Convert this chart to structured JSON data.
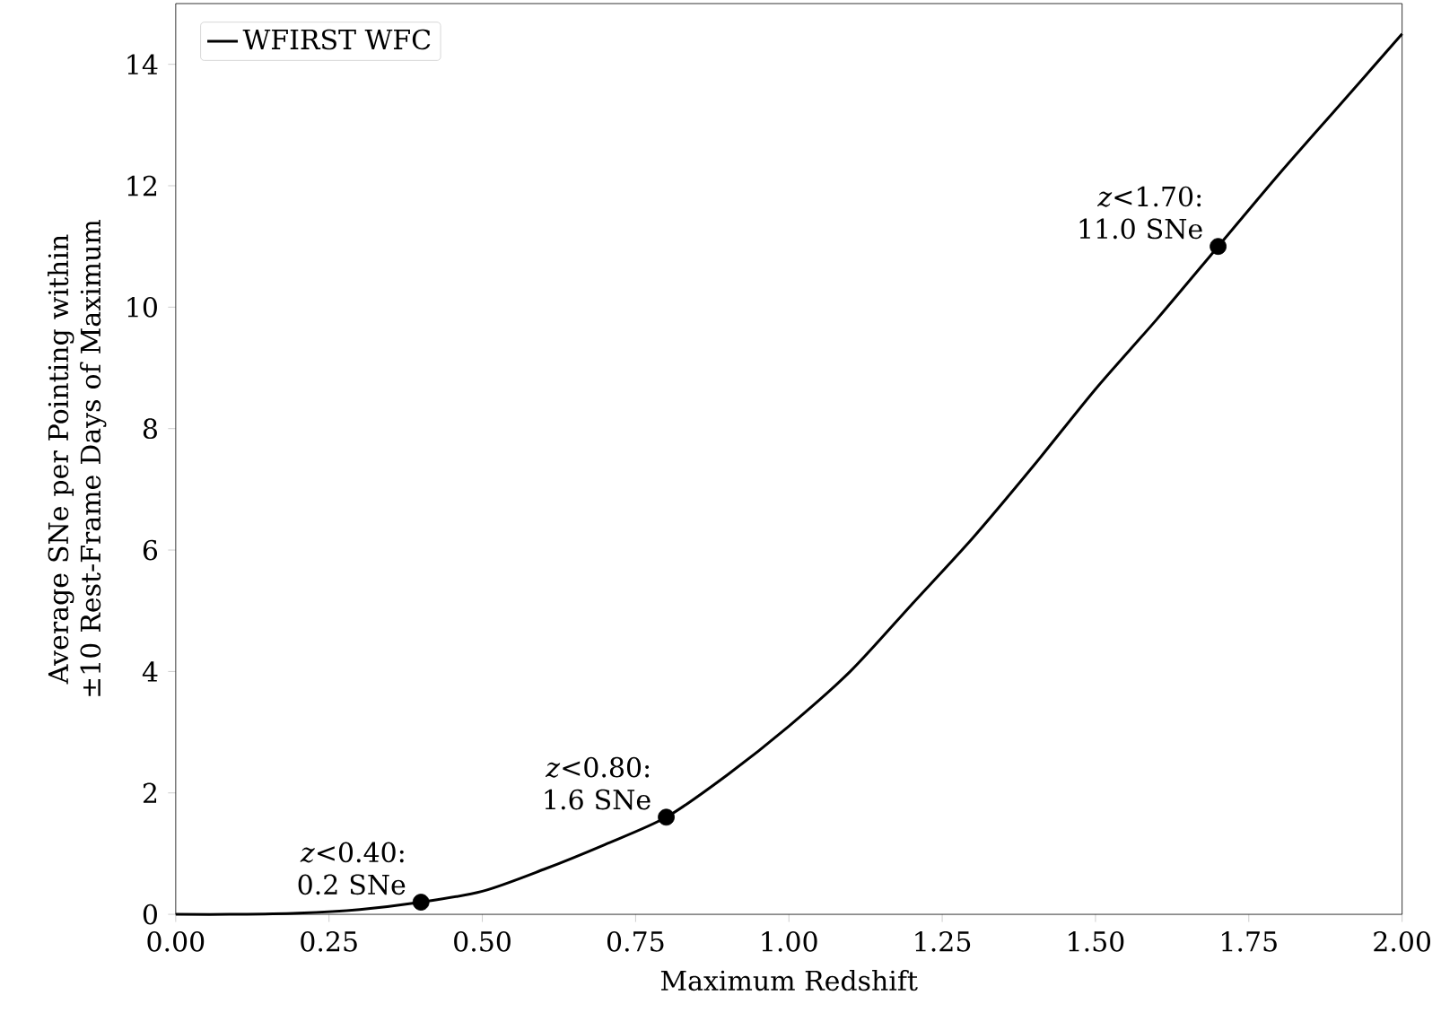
{
  "chart_data": {
    "type": "line",
    "xlabel": "Maximum Redshift",
    "ylabel": "Average SNe per Pointing within ±10 Rest-Frame Days of Maximum",
    "xlim": [
      0,
      2
    ],
    "ylim": [
      0,
      15
    ],
    "xticks": [
      {
        "value": 0,
        "label": "0.00"
      },
      {
        "value": 0.25,
        "label": "0.25"
      },
      {
        "value": 0.5,
        "label": "0.50"
      },
      {
        "value": 0.75,
        "label": "0.75"
      },
      {
        "value": 1,
        "label": "1.00"
      },
      {
        "value": 1.25,
        "label": "1.25"
      },
      {
        "value": 1.5,
        "label": "1.50"
      },
      {
        "value": 1.75,
        "label": "1.75"
      },
      {
        "value": 2,
        "label": "2.00"
      }
    ],
    "yticks": [
      0,
      2,
      4,
      6,
      8,
      10,
      12,
      14
    ],
    "legend": "top left",
    "grid": false,
    "series": [
      {
        "name": "WFIRST WFC",
        "color": "#000000",
        "marker": "none",
        "x": [
          0,
          0.1,
          0.2,
          0.3,
          0.4,
          0.5,
          0.6,
          0.7,
          0.8,
          0.9,
          1.0,
          1.1,
          1.2,
          1.3,
          1.4,
          1.5,
          1.6,
          1.7,
          1.8,
          1.9,
          2.0
        ],
        "values": [
          0,
          0.0,
          0.02,
          0.08,
          0.2,
          0.38,
          0.74,
          1.15,
          1.6,
          2.3,
          3.1,
          4.0,
          5.1,
          6.2,
          7.4,
          8.65,
          9.8,
          11.0,
          12.2,
          13.35,
          14.5
        ]
      },
      {
        "type": "scatter",
        "color": "#000000",
        "marker": "circle",
        "x": [
          0.4,
          0.8,
          1.7
        ],
        "values": [
          0.2,
          1.6,
          11.0
        ]
      }
    ],
    "annotations": [
      {
        "text": "*z*<0.40: 0.2 SNe",
        "x": 0.4,
        "y": 0.2
      },
      {
        "text": "*z*<0.80: 1.6 SNe",
        "x": 0.8,
        "y": 1.6
      },
      {
        "text": "*z*<1.70: 11.0 SNe",
        "x": 1.7,
        "y": 11.0
      }
    ]
  }
}
